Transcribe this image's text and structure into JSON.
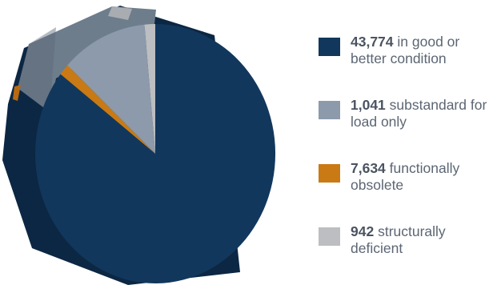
{
  "chart_data": {
    "type": "pie",
    "title": "",
    "categories": [
      "in good or better condition",
      "substandard for load only",
      "functionally obsolete",
      "structurally deficient"
    ],
    "values": [
      43774,
      1041,
      7634,
      942
    ],
    "value_labels": [
      "43,774",
      "1,041",
      "7,634",
      "942"
    ],
    "colors": [
      "#12375c",
      "#8c9aab",
      "#c97a14",
      "#bcbec1"
    ],
    "legend_position": "right",
    "style": "3d"
  },
  "legend": {
    "items": [
      {
        "value": "43,774",
        "label": "in good or better condition",
        "color": "#12375c"
      },
      {
        "value": "1,041",
        "label": "substandard for load only",
        "color": "#8c9aab"
      },
      {
        "value": "7,634",
        "label": "functionally obsolete",
        "color": "#c97a14"
      },
      {
        "value": "942",
        "label": "structurally deficient",
        "color": "#bcbec1"
      }
    ]
  }
}
